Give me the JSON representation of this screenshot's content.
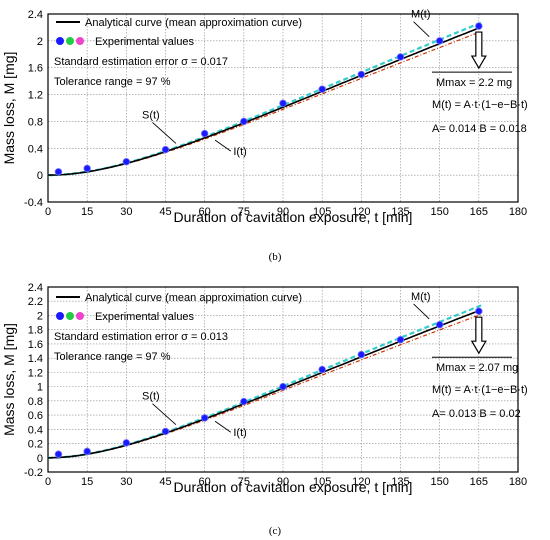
{
  "chart_data": [
    {
      "type": "line",
      "panel_label": "(b)",
      "xlabel": "Duration of cavitation exposure, t [min]",
      "ylabel": "Mass loss, M [mg]",
      "xlim": [
        0,
        180
      ],
      "ylim": [
        -0.4,
        2.4
      ],
      "xticks": [
        0,
        15,
        30,
        45,
        60,
        75,
        90,
        105,
        120,
        135,
        150,
        165,
        180
      ],
      "yticks": [
        -0.4,
        0,
        0.4,
        0.8,
        1.2,
        1.6,
        2,
        2.4
      ],
      "grid": true,
      "legend_position": "top-left",
      "legend": {
        "line_label": "Analytical curve (mean approximation curve)",
        "points_label": "Experimental values"
      },
      "annotations": {
        "error_text": "Standard estimation error σ = 0.017",
        "tolerance_text": "Tolerance range  = 97 %",
        "mmax_text": "Mmax = 2.2 mg",
        "formula_text": "M(t) = A·t·(1−e−B·t)",
        "params_text": "A= 0.014   B = 0.018",
        "curve_label_m": "M(t)",
        "curve_label_s": "S(t)",
        "curve_label_i": "I(t)"
      },
      "params": {
        "A": 0.014,
        "B": 0.018
      },
      "band_pct": 3,
      "x": [
        4,
        15,
        30,
        45,
        60,
        75,
        90,
        105,
        120,
        135,
        150,
        165
      ],
      "values": [
        0.05,
        0.1,
        0.2,
        0.38,
        0.62,
        0.8,
        1.07,
        1.28,
        1.5,
        1.76,
        2.0,
        2.22
      ],
      "colors": {
        "analytical": "#000000",
        "upper": "#33cccc",
        "lower": "#cc3300",
        "dots": [
          "#1a1aff",
          "#22cc44",
          "#ee44cc"
        ]
      }
    },
    {
      "type": "line",
      "panel_label": "(c)",
      "xlabel": "Duration of cavitation exposure, t [min]",
      "ylabel": "Mass loss, M [mg]",
      "xlim": [
        0,
        180
      ],
      "ylim": [
        -0.2,
        2.4
      ],
      "xticks": [
        0,
        15,
        30,
        45,
        60,
        75,
        90,
        105,
        120,
        135,
        150,
        165,
        180
      ],
      "yticks": [
        -0.2,
        0,
        0.2,
        0.4,
        0.6,
        0.8,
        1,
        1.2,
        1.4,
        1.6,
        1.8,
        2,
        2.2,
        2.4
      ],
      "grid": true,
      "legend_position": "top-left",
      "legend": {
        "line_label": "Analytical curve (mean approximation curve)",
        "points_label": "Experimental values"
      },
      "annotations": {
        "error_text": "Standard estimation error σ = 0.013",
        "tolerance_text": "Tolerance range  = 97 %",
        "mmax_text": "Mmax = 2.07 mg",
        "formula_text": "M(t) = A·t·(1−e−B·t)",
        "params_text": "A= 0.013   B = 0.02",
        "curve_label_m": "M(t)",
        "curve_label_s": "S(t)",
        "curve_label_i": "I(t)"
      },
      "params": {
        "A": 0.013,
        "B": 0.02
      },
      "band_pct": 3,
      "x": [
        4,
        15,
        30,
        45,
        60,
        75,
        90,
        105,
        120,
        135,
        150,
        165
      ],
      "values": [
        0.05,
        0.09,
        0.21,
        0.37,
        0.56,
        0.79,
        1.0,
        1.24,
        1.45,
        1.66,
        1.87,
        2.06
      ],
      "colors": {
        "analytical": "#000000",
        "upper": "#33cccc",
        "lower": "#cc3300",
        "dots": [
          "#1a1aff",
          "#22cc44",
          "#ee44cc"
        ]
      }
    }
  ]
}
